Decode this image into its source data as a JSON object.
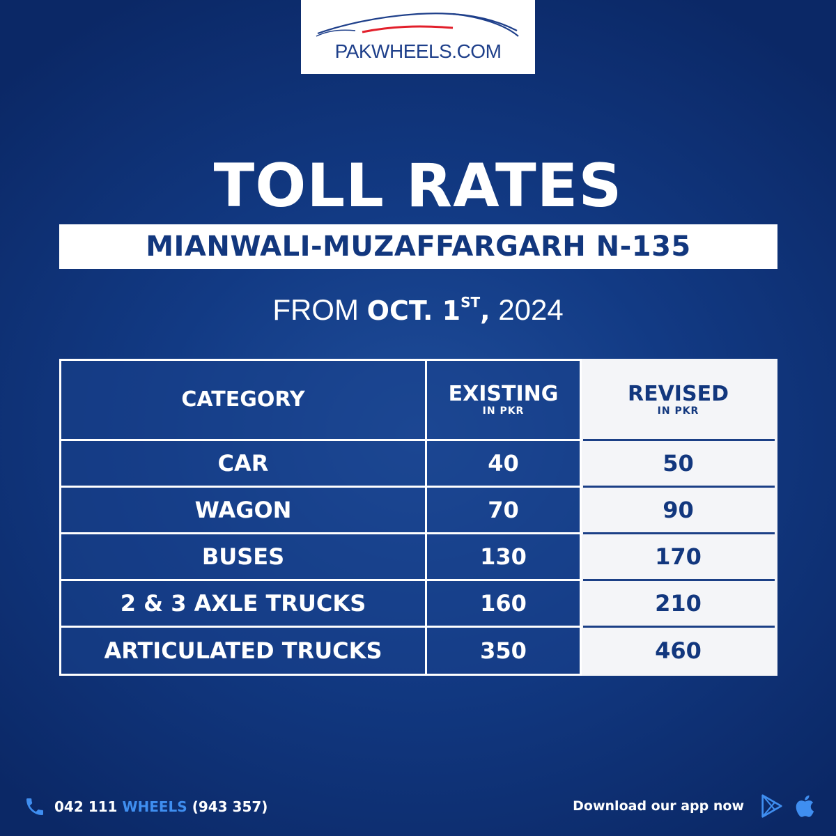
{
  "brand": {
    "logo_text": "PAKWHEELS.COM",
    "colors": {
      "navy": "#12377e",
      "accent_red": "#e21f2b",
      "accent_blue": "#3f8ef0",
      "background": "#123a84"
    }
  },
  "headline": {
    "title": "TOLL RATES",
    "route": "MIANWALI-MUZAFFARGARH N-135",
    "date_prefix": "FROM",
    "date_main": "OCT. 1",
    "date_suffix": "ST",
    "date_year": ", 2024"
  },
  "table": {
    "headers": {
      "category": "CATEGORY",
      "existing": "EXISTING",
      "existing_unit": "IN PKR",
      "revised": "REVISED",
      "revised_unit": "IN PKR"
    },
    "rows": [
      {
        "category": "CAR",
        "existing": "40",
        "revised": "50"
      },
      {
        "category": "WAGON",
        "existing": "70",
        "revised": "90"
      },
      {
        "category": "BUSES",
        "existing": "130",
        "revised": "170"
      },
      {
        "category": "2 & 3 AXLE TRUCKS",
        "existing": "160",
        "revised": "210"
      },
      {
        "category": "ARTICULATED TRUCKS",
        "existing": "350",
        "revised": "460"
      }
    ]
  },
  "footer": {
    "phone_number": "042 111",
    "phone_word": "WHEELS",
    "phone_digits": "(943 357)",
    "app_text": "Download our app now",
    "icons": [
      "phone-icon",
      "google-play-icon",
      "apple-icon"
    ]
  }
}
